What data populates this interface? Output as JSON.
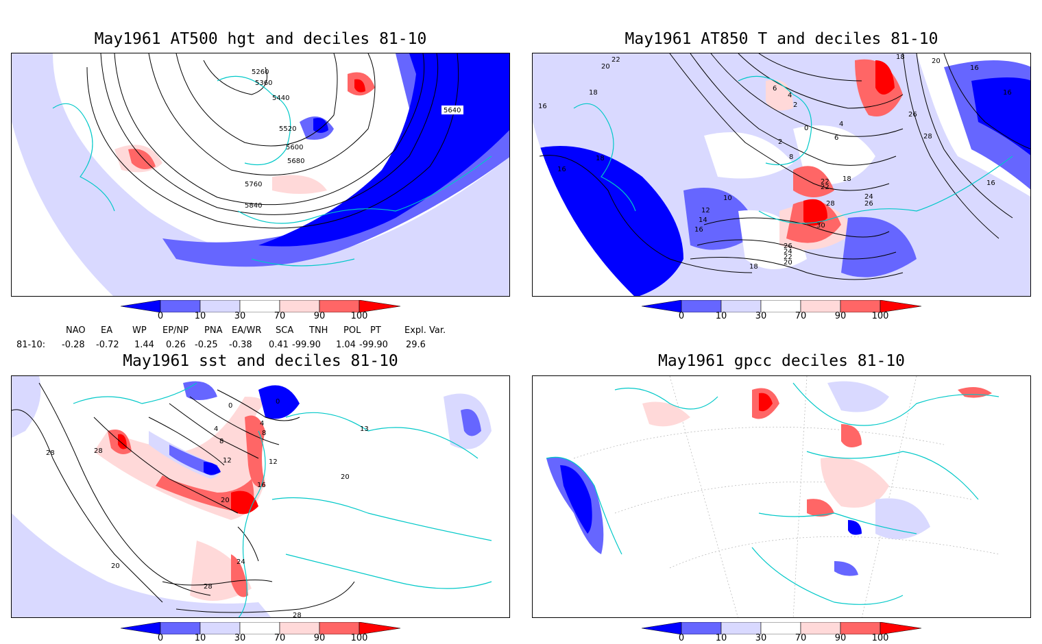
{
  "panels": [
    {
      "id": "p1",
      "title": "May1961 AT500 hgt and deciles 81-10",
      "contour_labels": [
        "5260",
        "5360",
        "5440",
        "5520",
        "5600",
        "5680",
        "5760",
        "5840",
        "5640"
      ]
    },
    {
      "id": "p2",
      "title": "May1961 AT850 T and deciles 81-10",
      "contour_labels": [
        "22",
        "20",
        "18",
        "16",
        "18",
        "16",
        "12",
        "14",
        "16",
        "10",
        "18",
        "8",
        "6",
        "4",
        "2",
        "0",
        "2",
        "6",
        "4",
        "22",
        "22",
        "28",
        "30",
        "26",
        "24",
        "22",
        "20",
        "18",
        "24",
        "26",
        "26",
        "28",
        "20",
        "18",
        "16",
        "16",
        "16"
      ]
    },
    {
      "id": "p3",
      "title": "May1961 sst and deciles 81-10",
      "contour_labels": [
        "28",
        "28",
        "0",
        "4",
        "4",
        "8",
        "8",
        "12",
        "12",
        "16",
        "20",
        "20",
        "24",
        "28",
        "28",
        "13",
        "20",
        "0"
      ]
    },
    {
      "id": "p4",
      "title": "May1961 gpcc deciles 81-10",
      "contour_labels": []
    }
  ],
  "colorbar": {
    "ticks": [
      "0",
      "10",
      "30",
      "70",
      "90",
      "100"
    ],
    "colors": {
      "lt0": "#0000ff",
      "0_10": "#6666ff",
      "10_30": "#d9d9ff",
      "30_70": "#ffffff",
      "70_90": "#ffd9d9",
      "90_100": "#ff6666",
      "gt100": "#ff0000"
    }
  },
  "teleconnections": {
    "headers": [
      "NAO",
      "EA",
      "WP",
      "EP/NP",
      "PNA",
      "EA/WR",
      "SCA",
      "TNH",
      "POL",
      "PT",
      "Expl. Var."
    ],
    "row_label": "81-10:",
    "values": [
      "-0.28",
      "-0.72",
      "1.44",
      "0.26",
      "-0.25",
      "-0.38",
      "0.41",
      "-99.90",
      "1.04",
      "-99.90",
      "29.6"
    ]
  },
  "style": {
    "coast_color": "#00c8c8",
    "contour_color": "#000000"
  }
}
